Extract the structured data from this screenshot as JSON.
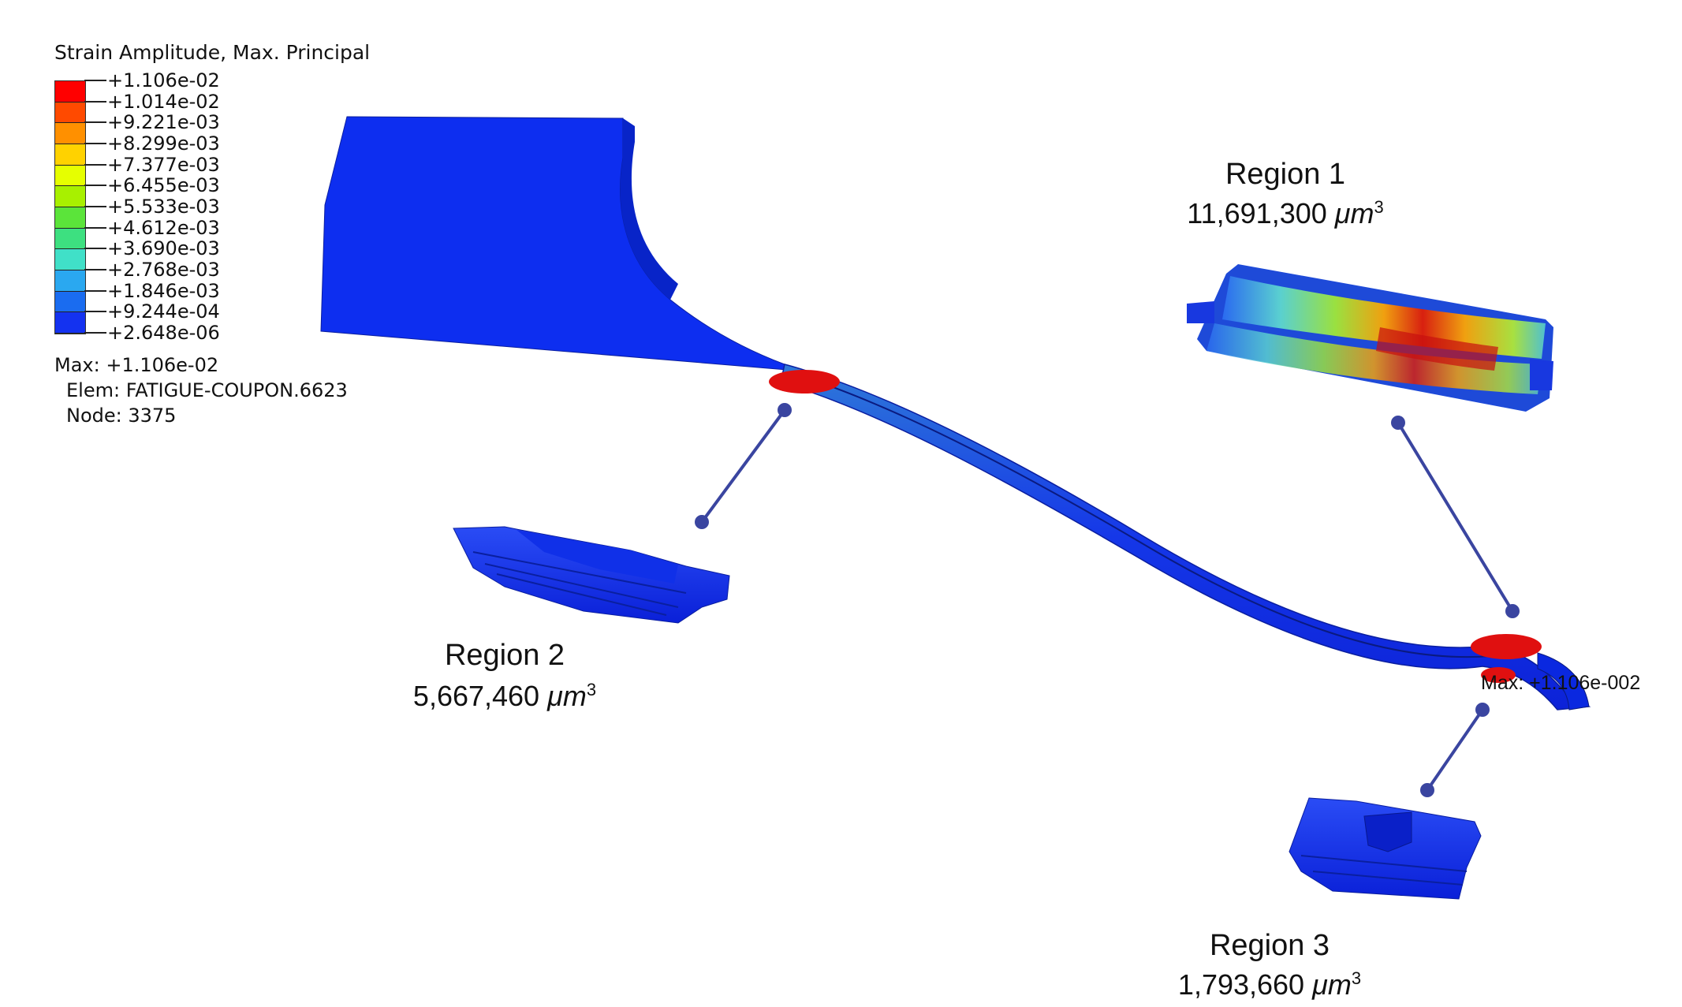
{
  "legend": {
    "title": "Strain Amplitude, Max. Principal",
    "labels": [
      "+1.106e-02",
      "+1.014e-02",
      "+9.221e-03",
      "+8.299e-03",
      "+7.377e-03",
      "+6.455e-03",
      "+5.533e-03",
      "+4.612e-03",
      "+3.690e-03",
      "+2.768e-03",
      "+1.846e-03",
      "+9.244e-04",
      "+2.648e-06"
    ],
    "colors": [
      "#ff0000",
      "#ff4a00",
      "#ff9000",
      "#ffd200",
      "#e6ff00",
      "#a8f000",
      "#5be43a",
      "#3de080",
      "#40e0c8",
      "#2aa8f0",
      "#1a6cf0",
      "#1432f0"
    ]
  },
  "max_info": {
    "max": "Max: +1.106e-02",
    "elem": "Elem: FATIGUE-COUPON.6623",
    "node": "Node: 3375"
  },
  "max_annotation": "Max: +1.106e-002",
  "regions": [
    {
      "title": "Region 1",
      "volume": "11,691,300",
      "unit": "μm",
      "exp": "3"
    },
    {
      "title": "Region 2",
      "volume": "5,667,460",
      "unit": "μm",
      "exp": "3"
    },
    {
      "title": "Region 3",
      "volume": "1,793,660",
      "unit": "μm",
      "exp": "3"
    }
  ],
  "colors": {
    "specimen_blue": "#0d2ef0",
    "hotspot_red": "#e01010",
    "leader_line": "#3a45a0"
  }
}
